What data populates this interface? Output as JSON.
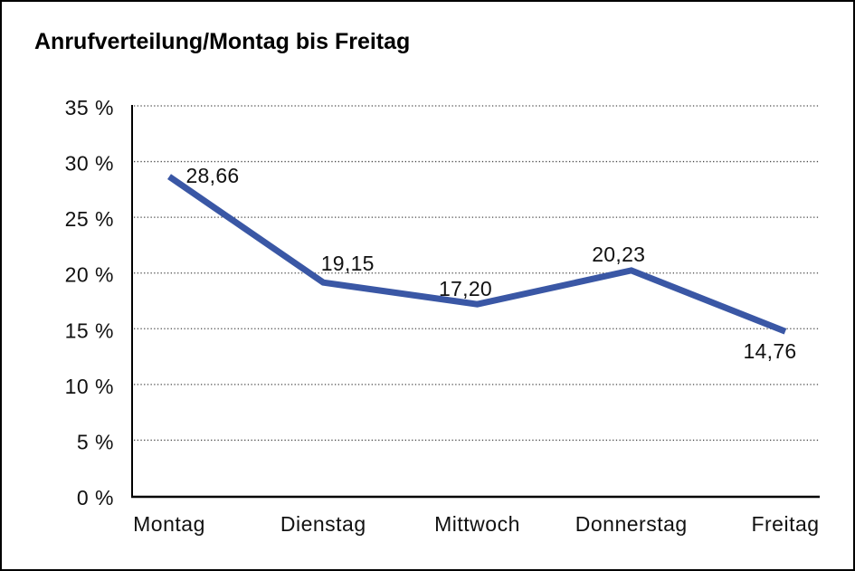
{
  "page": {
    "background": "#ffffff",
    "border_color": "#000000"
  },
  "chart_data": {
    "type": "line",
    "title": "Anrufverteilung/Montag bis Freitag",
    "categories": [
      "Montag",
      "Dienstag",
      "Mittwoch",
      "Donnerstag",
      "Freitag"
    ],
    "series": [
      {
        "name": "Anrufverteilung",
        "values": [
          28.66,
          19.15,
          17.2,
          20.23,
          14.76
        ],
        "color": "#3A57A5"
      }
    ],
    "point_labels": [
      "28,66",
      "19,15",
      "17,20",
      "20,23",
      "14,76"
    ],
    "xlabel": "",
    "ylabel": "",
    "y_ticks": [
      "35 %",
      "30 %",
      "25 %",
      "20 %",
      "15 %",
      "10 %",
      "5 %",
      "0 %"
    ],
    "ylim": [
      0,
      35
    ],
    "y_tick_step": 5,
    "grid": "horizontal-dotted",
    "legend": "none",
    "line_width": 7,
    "axis_color": "#000000",
    "grid_color": "#4a4a4a",
    "text_color": "#111111"
  }
}
